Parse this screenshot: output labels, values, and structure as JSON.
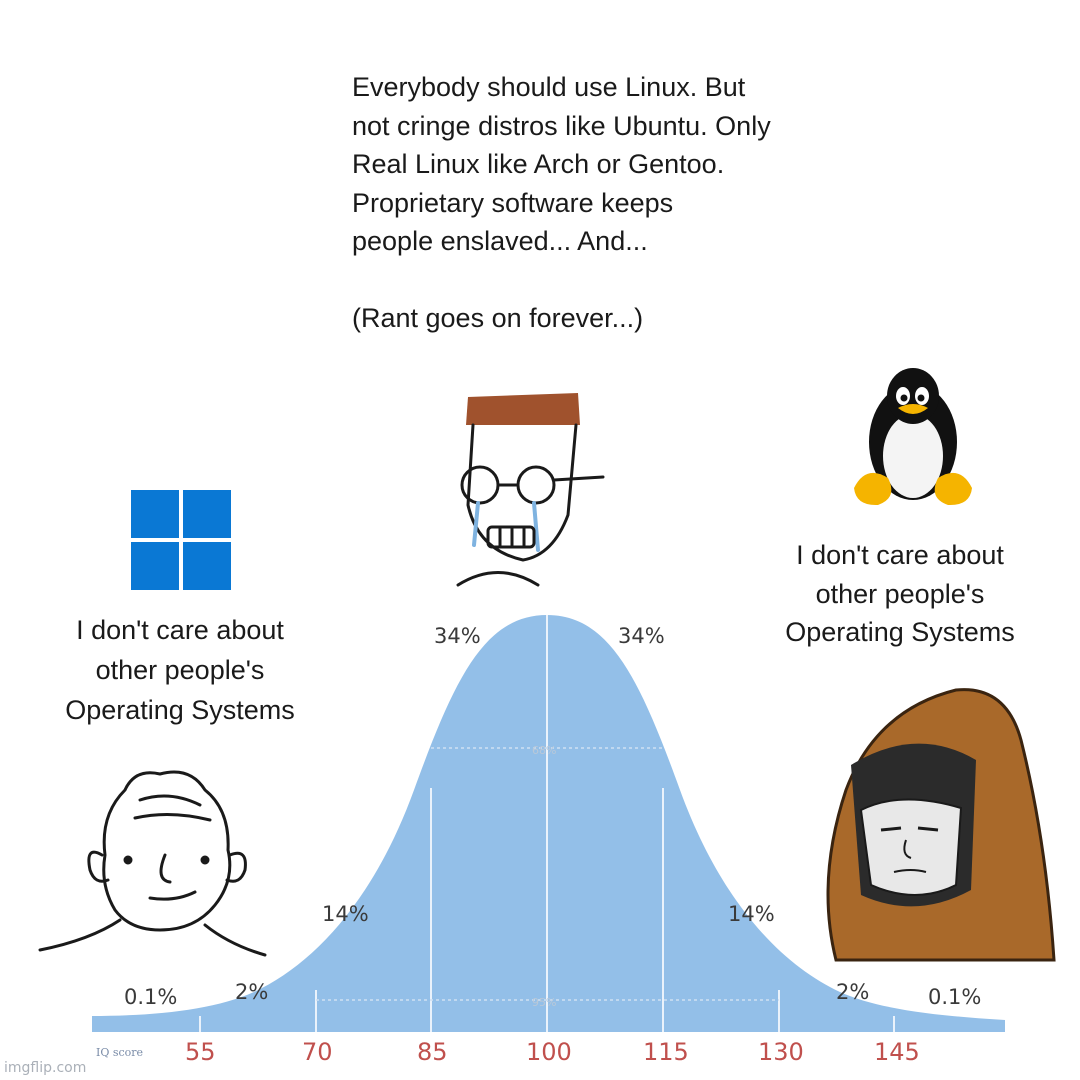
{
  "top_rant": "Everybody should use Linux. But\nnot cringe distros like Ubuntu. Only\nReal Linux like Arch or Gentoo.\nProprietary software keeps\npeople enslaved... And...\n\n(Rant goes on forever...)",
  "left_caption": "I don't care about\nother people's\nOperating Systems",
  "right_caption": "I don't care about\nother people's\nOperating Systems",
  "distribution": {
    "segments": [
      "0.1%",
      "2%",
      "14%",
      "34%",
      "34%",
      "14%",
      "2%",
      "0.1%"
    ],
    "inner_label": "68%",
    "outer_label": "95%",
    "axis_title": "IQ score",
    "ticks": [
      "55",
      "70",
      "85",
      "100",
      "115",
      "130",
      "145"
    ]
  },
  "watermark": "imgflip.com",
  "colors": {
    "curve": "#93bfe8",
    "axis_numbers": "#c0504d",
    "windows_blue": "#0a78d4",
    "hood_brown": "#a9692a"
  },
  "icons": [
    "windows-logo-icon",
    "tux-penguin-icon"
  ]
}
